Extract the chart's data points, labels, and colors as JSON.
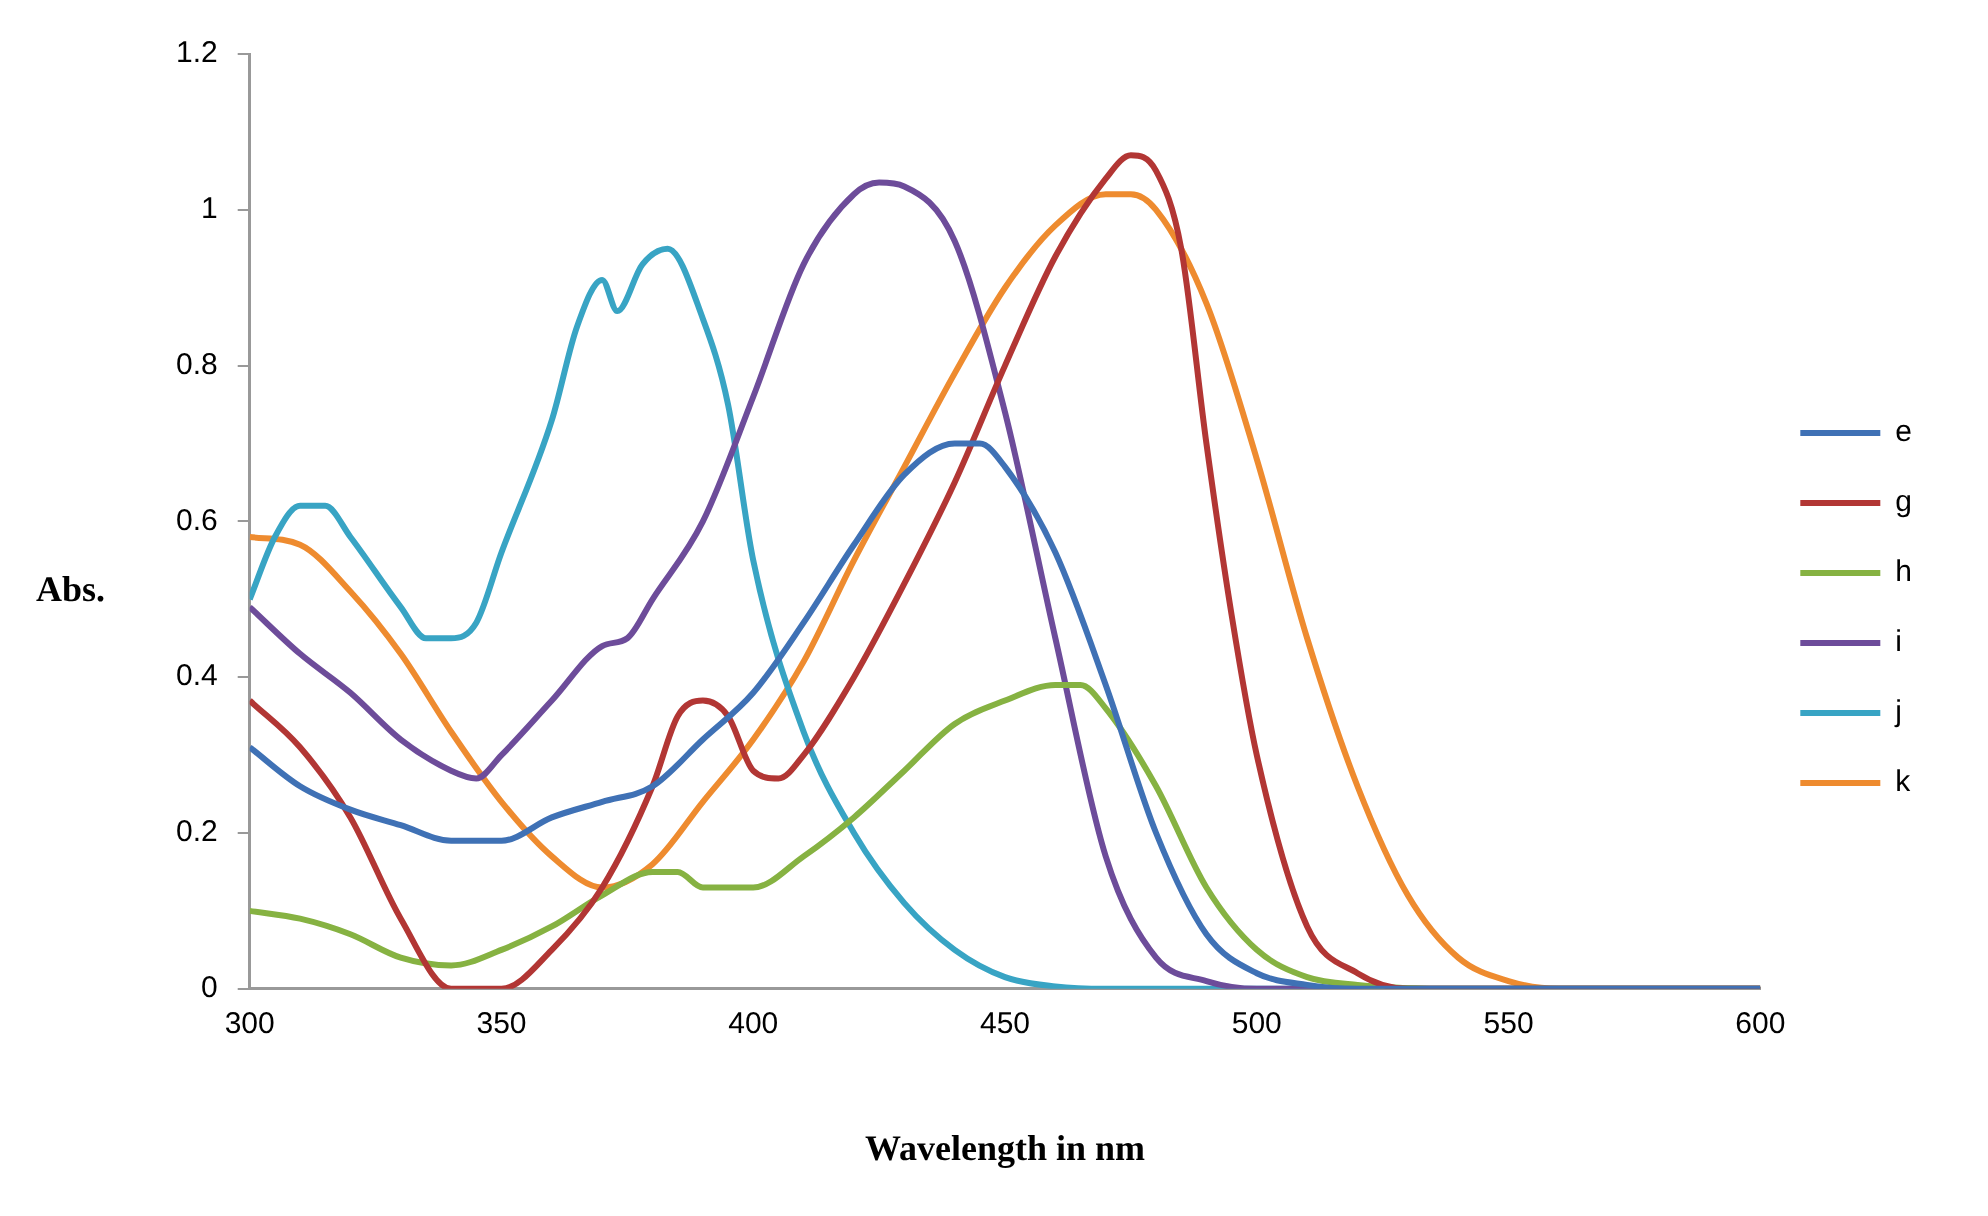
{
  "chart_data": {
    "type": "line",
    "xlabel": "Wavelength in nm",
    "ylabel": "Abs.",
    "xlim": [
      300,
      600
    ],
    "xticks": [
      300,
      350,
      400,
      450,
      500,
      550,
      600
    ],
    "ylim": [
      0,
      1.2
    ],
    "yticks": [
      0,
      0.2,
      0.4,
      0.6,
      0.8,
      1,
      1.2
    ],
    "grid": false,
    "legend": "right",
    "marker": "none",
    "line_style": "solid",
    "series": [
      {
        "name": "e",
        "color": "#3f71b5",
        "x": [
          300,
          310,
          320,
          330,
          340,
          350,
          360,
          370,
          380,
          390,
          400,
          410,
          420,
          430,
          440,
          445,
          450,
          460,
          470,
          480,
          490,
          500,
          510,
          520,
          600
        ],
        "values": [
          0.31,
          0.26,
          0.23,
          0.21,
          0.19,
          0.19,
          0.22,
          0.24,
          0.26,
          0.32,
          0.38,
          0.47,
          0.57,
          0.66,
          0.7,
          0.7,
          0.67,
          0.56,
          0.39,
          0.2,
          0.07,
          0.02,
          0.005,
          0,
          0
        ]
      },
      {
        "name": "g",
        "color": "#b23634",
        "x": [
          300,
          310,
          320,
          330,
          340,
          350,
          360,
          370,
          380,
          385,
          390,
          395,
          400,
          405,
          410,
          420,
          430,
          440,
          450,
          460,
          470,
          475,
          480,
          485,
          490,
          495,
          500,
          510,
          520,
          530,
          600
        ],
        "values": [
          0.37,
          0.31,
          0.22,
          0.09,
          0,
          0,
          0.05,
          0.13,
          0.26,
          0.35,
          0.37,
          0.35,
          0.28,
          0.27,
          0.3,
          0.4,
          0.52,
          0.65,
          0.8,
          0.94,
          1.04,
          1.07,
          1.05,
          0.95,
          0.7,
          0.48,
          0.3,
          0.08,
          0.02,
          0,
          0
        ]
      },
      {
        "name": "h",
        "color": "#86b242",
        "x": [
          300,
          310,
          320,
          330,
          340,
          350,
          360,
          370,
          380,
          385,
          390,
          400,
          410,
          420,
          430,
          440,
          450,
          460,
          465,
          470,
          480,
          490,
          500,
          510,
          520,
          540,
          600
        ],
        "values": [
          0.1,
          0.09,
          0.07,
          0.04,
          0.03,
          0.05,
          0.08,
          0.12,
          0.15,
          0.15,
          0.13,
          0.13,
          0.17,
          0.22,
          0.28,
          0.34,
          0.37,
          0.39,
          0.39,
          0.36,
          0.26,
          0.13,
          0.05,
          0.015,
          0.005,
          0,
          0
        ]
      },
      {
        "name": "i",
        "color": "#6d4c9a",
        "x": [
          300,
          310,
          320,
          330,
          340,
          345,
          350,
          360,
          370,
          375,
          380,
          390,
          400,
          410,
          420,
          425,
          430,
          440,
          450,
          460,
          470,
          480,
          490,
          500,
          600
        ],
        "values": [
          0.49,
          0.43,
          0.38,
          0.32,
          0.28,
          0.27,
          0.3,
          0.37,
          0.44,
          0.45,
          0.5,
          0.6,
          0.76,
          0.93,
          1.02,
          1.035,
          1.03,
          0.96,
          0.74,
          0.45,
          0.17,
          0.04,
          0.01,
          0,
          0
        ]
      },
      {
        "name": "j",
        "color": "#38a4c4",
        "x": [
          300,
          305,
          310,
          315,
          320,
          330,
          335,
          340,
          345,
          350,
          360,
          365,
          370,
          373,
          378,
          383,
          390,
          395,
          400,
          410,
          420,
          430,
          440,
          450,
          460,
          470,
          600
        ],
        "values": [
          0.5,
          0.58,
          0.62,
          0.62,
          0.58,
          0.49,
          0.45,
          0.45,
          0.47,
          0.56,
          0.73,
          0.85,
          0.91,
          0.87,
          0.93,
          0.95,
          0.86,
          0.75,
          0.55,
          0.33,
          0.2,
          0.11,
          0.05,
          0.015,
          0.003,
          0,
          0
        ]
      },
      {
        "name": "k",
        "color": "#ee8b2f",
        "x": [
          300,
          310,
          320,
          330,
          340,
          350,
          360,
          370,
          380,
          390,
          400,
          410,
          420,
          430,
          440,
          450,
          460,
          470,
          475,
          480,
          490,
          500,
          510,
          520,
          530,
          540,
          550,
          560,
          600
        ],
        "values": [
          0.58,
          0.57,
          0.51,
          0.43,
          0.33,
          0.24,
          0.17,
          0.13,
          0.16,
          0.24,
          0.32,
          0.42,
          0.55,
          0.67,
          0.79,
          0.9,
          0.98,
          1.02,
          1.02,
          1,
          0.88,
          0.68,
          0.45,
          0.26,
          0.12,
          0.04,
          0.01,
          0,
          0
        ]
      }
    ]
  }
}
